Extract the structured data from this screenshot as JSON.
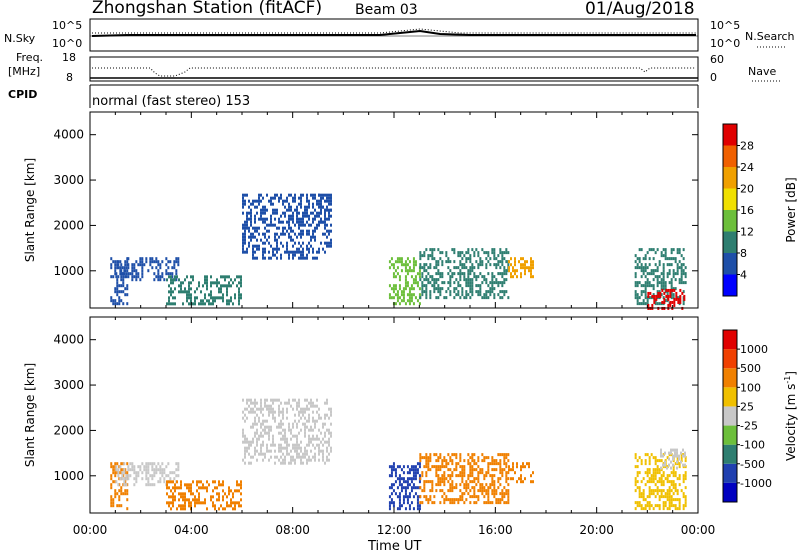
{
  "header": {
    "station": "Zhongshan Station (fitACF)",
    "beam": "Beam 03",
    "date": "01/Aug/2018"
  },
  "panels": {
    "top": {
      "left_label": "N.Sky",
      "right_label": "N.Search",
      "left_ticks": [
        "10^5",
        "10^0"
      ],
      "right_ticks": [
        "10^5",
        "10^0"
      ]
    },
    "freq": {
      "left_label_1": "Freq.",
      "left_label_2": "[MHz]",
      "right_label": "Nave",
      "left_ticks": [
        "18",
        "8"
      ],
      "right_ticks": [
        "60",
        "0"
      ]
    },
    "cpid": {
      "label": "CPID",
      "text": "normal (fast stereo) 153"
    }
  },
  "colorbars": {
    "power": {
      "label": "Power [dB]",
      "ticks": [
        "28",
        "24",
        "20",
        "16",
        "12",
        "8",
        "4"
      ],
      "colors": [
        "#0000ff",
        "#1e4fa8",
        "#2e7e70",
        "#6cbf3b",
        "#f0e000",
        "#f0a000",
        "#f06000",
        "#e00000"
      ]
    },
    "velocity": {
      "label": "Velocity [m s",
      "label_sup": "-1",
      "label_end": "]",
      "ticks": [
        "1000",
        "500",
        "100",
        "25",
        "-25",
        "-100",
        "-500",
        "-1000"
      ],
      "colors": [
        "#0000c0",
        "#2040b0",
        "#2e7e70",
        "#6cbf3b",
        "#c8c8c8",
        "#f0c000",
        "#f08000",
        "#f04000",
        "#e00000"
      ]
    }
  },
  "chart_data": [
    {
      "type": "heatmap",
      "name": "power",
      "ylabel": "Slant Range [km]",
      "ylim": [
        180,
        4500
      ],
      "yticks": [
        "4000",
        "3000",
        "2000",
        "1000"
      ],
      "xlim": [
        0,
        24
      ],
      "regions": [
        {
          "t0": 0.8,
          "t1": 1.5,
          "r0": 300,
          "r1": 1300,
          "c": "#1e4fa8"
        },
        {
          "t0": 1.0,
          "t1": 3.5,
          "r0": 800,
          "r1": 1300,
          "c": "#1e4fa8"
        },
        {
          "t0": 3.0,
          "t1": 6.0,
          "r0": 300,
          "r1": 900,
          "c": "#2e7e70"
        },
        {
          "t0": 6.0,
          "t1": 9.5,
          "r0": 1300,
          "r1": 2700,
          "c": "#1e4fa8"
        },
        {
          "t0": 9.0,
          "t1": 9.5,
          "r0": 2000,
          "r1": 2700,
          "c": "#1e4fa8"
        },
        {
          "t0": 11.8,
          "t1": 13.0,
          "r0": 300,
          "r1": 1300,
          "c": "#6cbf3b"
        },
        {
          "t0": 13.0,
          "t1": 16.5,
          "r0": 400,
          "r1": 1500,
          "c": "#2e7e70"
        },
        {
          "t0": 16.5,
          "t1": 17.5,
          "r0": 900,
          "r1": 1300,
          "c": "#f0a000"
        },
        {
          "t0": 21.5,
          "t1": 23.5,
          "r0": 300,
          "r1": 1500,
          "c": "#2e7e70"
        },
        {
          "t0": 22.0,
          "t1": 23.5,
          "r0": 200,
          "r1": 600,
          "c": "#e00000"
        }
      ]
    },
    {
      "type": "heatmap",
      "name": "velocity",
      "xlabel": "Time UT",
      "ylabel": "Slant Range [km]",
      "ylim": [
        180,
        4500
      ],
      "yticks": [
        "4000",
        "3000",
        "2000",
        "1000"
      ],
      "xlim": [
        0,
        24
      ],
      "xticks": [
        "00:00",
        "04:00",
        "08:00",
        "12:00",
        "16:00",
        "20:00",
        "00:00"
      ],
      "regions": [
        {
          "t0": 0.8,
          "t1": 1.5,
          "r0": 300,
          "r1": 1300,
          "c": "#f08000"
        },
        {
          "t0": 1.0,
          "t1": 3.5,
          "r0": 800,
          "r1": 1300,
          "c": "#c8c8c8"
        },
        {
          "t0": 3.0,
          "t1": 6.0,
          "r0": 300,
          "r1": 900,
          "c": "#f08000"
        },
        {
          "t0": 6.0,
          "t1": 9.5,
          "r0": 1300,
          "r1": 2700,
          "c": "#c8c8c8"
        },
        {
          "t0": 11.8,
          "t1": 13.0,
          "r0": 300,
          "r1": 1300,
          "c": "#2040b0"
        },
        {
          "t0": 13.0,
          "t1": 16.5,
          "r0": 400,
          "r1": 1500,
          "c": "#f08000"
        },
        {
          "t0": 16.5,
          "t1": 17.5,
          "r0": 900,
          "r1": 1300,
          "c": "#f08000"
        },
        {
          "t0": 21.5,
          "t1": 23.5,
          "r0": 300,
          "r1": 1500,
          "c": "#f0c000"
        },
        {
          "t0": 22.5,
          "t1": 23.5,
          "r0": 1200,
          "r1": 1600,
          "c": "#c8c8c8"
        }
      ]
    }
  ]
}
